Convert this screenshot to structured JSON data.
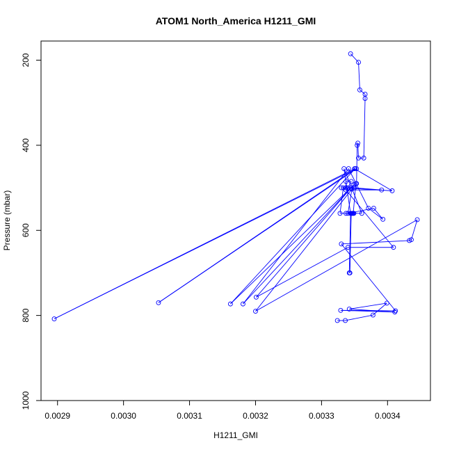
{
  "chart_data": {
    "type": "line",
    "title": "ATOM1 North_America H1211_GMI",
    "xlabel": "H1211_GMI",
    "ylabel": "Pressure (mbar)",
    "xlim": [
      0.002875,
      0.003465
    ],
    "ylim": [
      1000,
      155
    ],
    "y_reversed": true,
    "x_ticks": [
      0.0029,
      0.003,
      0.0031,
      0.0032,
      0.0033,
      0.0034
    ],
    "x_tick_labels": [
      "0.0029",
      "0.0030",
      "0.0031",
      "0.0032",
      "0.0033",
      "0.0034"
    ],
    "y_ticks": [
      200,
      400,
      600,
      800,
      1000
    ],
    "y_tick_labels": [
      "200",
      "400",
      "600",
      "800",
      "1000"
    ],
    "grid": false,
    "series": [
      {
        "color": "#0000ff",
        "marker": "open-circle",
        "x": [
          0.003324,
          0.003336,
          0.003378,
          0.003399,
          0.003342,
          0.003411,
          0.003329,
          0.003412,
          0.00333,
          0.003433,
          0.003436,
          0.003445,
          0.0032,
          0.003346,
          0.00334,
          0.003379,
          0.003393,
          0.003371,
          0.003341,
          0.003181,
          0.003349,
          0.003162,
          0.003351,
          0.003053,
          0.003353,
          0.002895,
          0.00335,
          0.003407,
          0.00333,
          0.00335,
          0.003391,
          0.003337,
          0.003409,
          0.00334,
          0.003201,
          0.003345,
          0.00334,
          0.003345,
          0.003337,
          0.003337,
          0.003337,
          0.003333,
          0.003328,
          0.003349,
          0.003337,
          0.003361,
          0.003334,
          0.003344,
          0.003342,
          0.003343,
          0.003345,
          0.003346,
          0.003347,
          0.003348,
          0.003352,
          0.003353,
          0.003354,
          0.003355,
          0.003356,
          0.003364,
          0.003366,
          0.003366,
          0.003358,
          0.003356,
          0.003344
        ],
        "y": [
          812,
          812,
          799,
          771,
          785,
          792,
          788,
          789,
          632,
          624,
          622,
          575,
          790,
          503,
          560,
          548,
          574,
          548,
          455,
          773,
          493,
          773,
          455,
          770,
          455,
          808,
          455,
          507,
          500,
          500,
          505,
          505,
          640,
          640,
          757,
          500,
          500,
          485,
          485,
          500,
          500,
          500,
          560,
          560,
          560,
          560,
          455,
          560,
          700,
          700,
          560,
          560,
          560,
          560,
          490,
          490,
          400,
          395,
          430,
          430,
          290,
          280,
          270,
          205,
          185
        ]
      }
    ]
  }
}
